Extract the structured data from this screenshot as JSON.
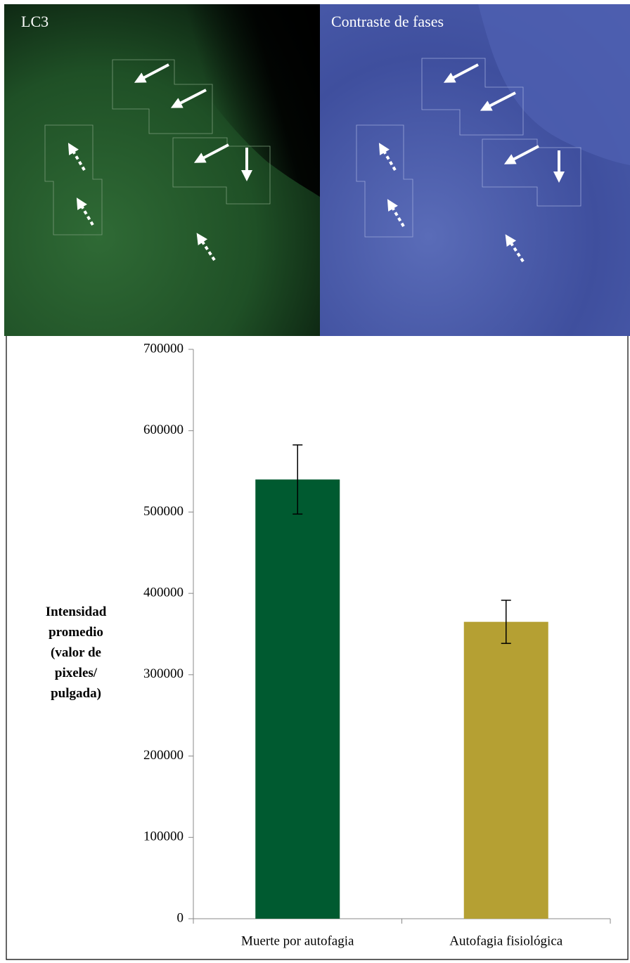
{
  "images": [
    {
      "label": "LC3"
    },
    {
      "label": "Contraste de fases"
    }
  ],
  "chart_data": {
    "type": "bar",
    "ylabel": "Intensidad promedio (valor de pixeles/ pulgada)",
    "categories": [
      "Muerte por autofagia",
      "Autofagia fisiológica"
    ],
    "values": [
      540000,
      365000
    ],
    "errors": [
      42500,
      26500
    ],
    "colors": [
      "#005a30",
      "#b5a033"
    ],
    "ylim": [
      0,
      700000
    ],
    "yticks": [
      0,
      100000,
      200000,
      300000,
      400000,
      500000,
      600000,
      700000
    ]
  }
}
